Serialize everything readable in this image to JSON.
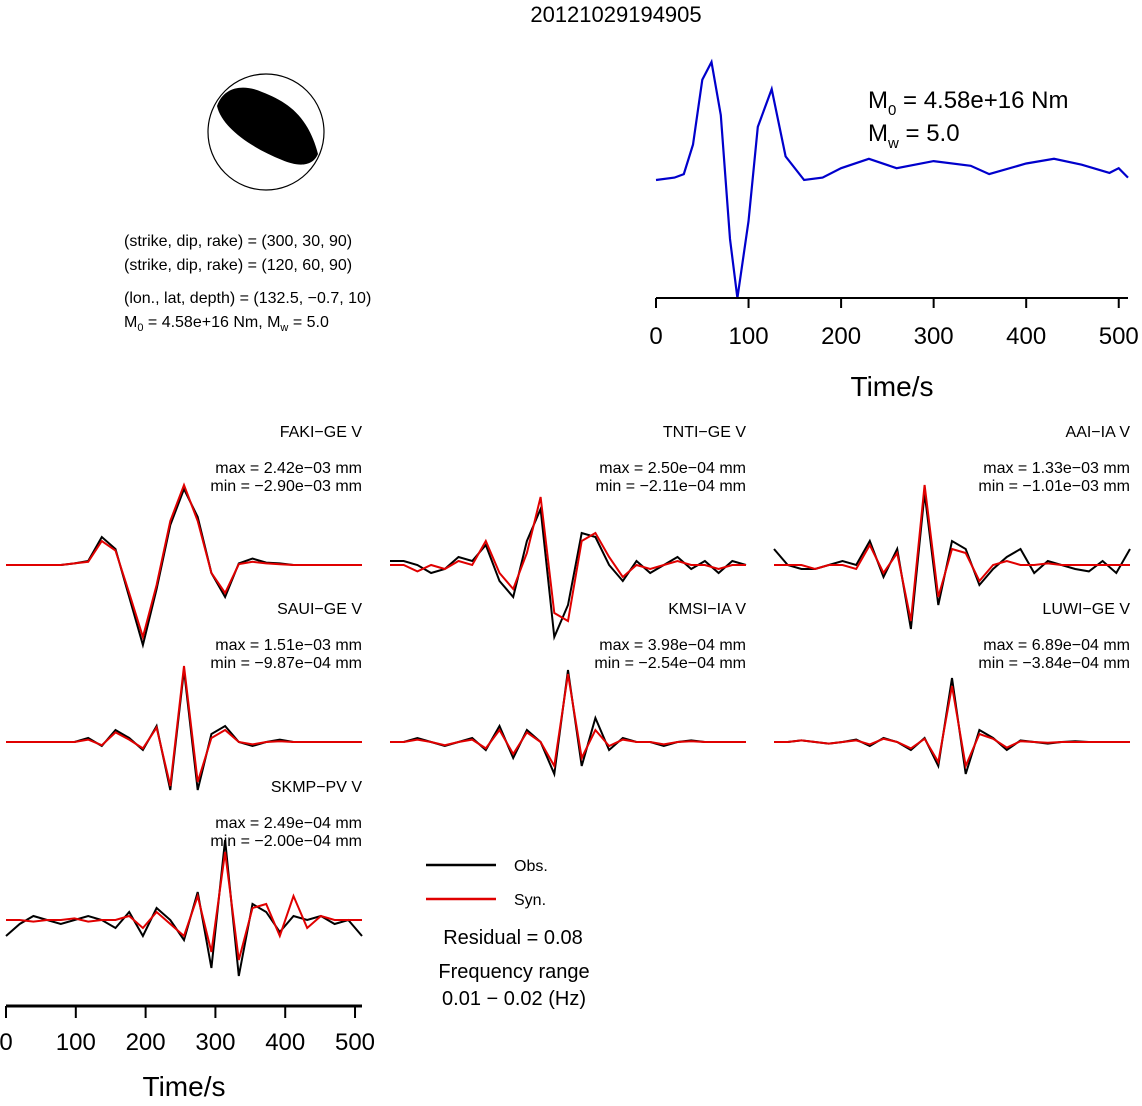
{
  "figure": {
    "title": "20121029194905",
    "mechanism": {
      "planes": [
        "(strike, dip, rake) = (300, 30, 90)",
        "(strike, dip, rake) = (120, 60, 90)"
      ],
      "location": "(lon., lat, depth) = (132.5, −0.7, 10)",
      "moment_line": {
        "m0_sym": "M",
        "m0_sub": "0",
        "m0_val": " = 4.58e+16 Nm, ",
        "mw_sym": "M",
        "mw_sub": "w",
        "mw_val": " = 5.0"
      }
    },
    "stf_labels": {
      "m0_sym": "M",
      "m0_sub": "0",
      "m0_val": " = 4.58e+16 Nm",
      "mw_sym": "M",
      "mw_sub": "w",
      "mw_val": " = 5.0"
    },
    "legend": {
      "obs": "Obs.",
      "syn": "Syn.",
      "residual": "Residual = 0.08",
      "freq_title": "Frequency range",
      "freq_range": "0.01 − 0.02 (Hz)"
    },
    "colors": {
      "obs": "#000000",
      "syn": "#e00000",
      "stf": "#0000cc",
      "beachball_fill": "#000000"
    }
  },
  "chart_data": [
    {
      "type": "line",
      "name": "source_time_function",
      "xlabel": "Time/s",
      "xlim": [
        0,
        510
      ],
      "ylim": [
        -1.0,
        1.0
      ],
      "xticks": [
        0,
        100,
        200,
        300,
        400,
        500
      ],
      "series": [
        {
          "x": [
            0,
            20,
            30,
            40,
            50,
            60,
            70,
            80,
            88,
            100,
            110,
            125,
            140,
            160,
            180,
            200,
            230,
            260,
            300,
            340,
            360,
            400,
            430,
            460,
            490,
            500,
            510
          ],
          "values": [
            0.0,
            0.02,
            0.05,
            0.3,
            0.85,
            1.0,
            0.55,
            -0.5,
            -1.0,
            -0.35,
            0.45,
            0.77,
            0.2,
            0.0,
            0.02,
            0.1,
            0.18,
            0.1,
            0.16,
            0.12,
            0.05,
            0.14,
            0.18,
            0.13,
            0.06,
            0.1,
            0.02
          ]
        }
      ]
    },
    {
      "type": "line",
      "name": "waveform_fits",
      "xlabel": "Time/s",
      "xlim": [
        0,
        510
      ],
      "xticks": [
        0,
        100,
        200,
        300,
        400,
        500
      ],
      "traces": [
        {
          "station": "FAKI−GE V",
          "max": "max = 2.42e−03 mm",
          "min": "min = −2.90e−03 mm",
          "obs": [
            0,
            0,
            0,
            0,
            0,
            0.02,
            0.05,
            0.35,
            0.2,
            -0.4,
            -1.0,
            -0.3,
            0.5,
            0.95,
            0.6,
            -0.1,
            -0.4,
            0.02,
            0.08,
            0.03,
            0.02,
            0,
            0,
            0,
            0,
            0,
            0
          ],
          "syn": [
            0,
            0,
            0,
            0,
            0,
            0.02,
            0.04,
            0.3,
            0.18,
            -0.35,
            -0.9,
            -0.25,
            0.55,
            1.0,
            0.55,
            -0.1,
            -0.35,
            0.01,
            0.04,
            0.02,
            0.01,
            0,
            0,
            0,
            0,
            0,
            0
          ]
        },
        {
          "station": "TNTI−GE V",
          "max": "max = 2.50e−04 mm",
          "min": "min = −2.11e−04 mm",
          "obs": [
            0.05,
            0.05,
            0.0,
            -0.1,
            -0.05,
            0.1,
            0.05,
            0.25,
            -0.2,
            -0.4,
            0.3,
            0.7,
            -0.9,
            -0.5,
            0.4,
            0.35,
            0.0,
            -0.2,
            0.05,
            -0.1,
            0.0,
            0.1,
            -0.05,
            0.05,
            -0.1,
            0.05,
            0.0
          ],
          "syn": [
            0,
            0.0,
            -0.08,
            0.0,
            -0.05,
            0.05,
            0.0,
            0.3,
            -0.1,
            -0.3,
            0.15,
            0.85,
            -0.6,
            -0.7,
            0.3,
            0.4,
            0.1,
            -0.15,
            0.0,
            -0.05,
            0.0,
            0.05,
            0.0,
            0.0,
            -0.05,
            0.0,
            0.0
          ]
        },
        {
          "station": "AAI−IA V",
          "max": "max = 1.33e−03 mm",
          "min": "min = −1.01e−03 mm",
          "obs": [
            0.2,
            0.0,
            -0.05,
            -0.05,
            0.0,
            0.05,
            0.0,
            0.3,
            -0.15,
            0.2,
            -0.8,
            0.9,
            -0.5,
            0.3,
            0.2,
            -0.25,
            -0.05,
            0.1,
            0.2,
            -0.1,
            0.05,
            0.0,
            -0.05,
            -0.08,
            0.05,
            -0.1,
            0.2
          ],
          "syn": [
            0,
            0,
            0,
            -0.05,
            0.0,
            0.0,
            -0.05,
            0.25,
            -0.1,
            0.15,
            -0.7,
            1.0,
            -0.4,
            0.2,
            0.15,
            -0.2,
            0.0,
            0.05,
            0.0,
            0.0,
            0.02,
            0.0,
            0.0,
            0.0,
            0.0,
            0.0,
            0.0
          ]
        },
        {
          "station": "SAUI−GE V",
          "max": "max = 1.51e−03 mm",
          "min": "min = −9.87e−04 mm",
          "obs": [
            0,
            0,
            0,
            0,
            0,
            0,
            0.05,
            -0.05,
            0.15,
            0.05,
            -0.1,
            0.2,
            -0.6,
            0.9,
            -0.6,
            0.1,
            0.2,
            0.0,
            -0.05,
            0.0,
            0.03,
            0.0,
            0.0,
            0,
            0,
            0,
            0
          ],
          "syn": [
            0,
            0,
            0,
            0,
            0,
            0,
            0.03,
            -0.04,
            0.12,
            0.03,
            -0.08,
            0.18,
            -0.55,
            0.95,
            -0.5,
            0.05,
            0.15,
            0.0,
            -0.03,
            0.0,
            0.01,
            0.0,
            0.0,
            0,
            0,
            0,
            0
          ]
        },
        {
          "station": "KMSI−IA V",
          "max": "max = 3.98e−04 mm",
          "min": "min = −2.54e−04 mm",
          "obs": [
            0,
            0.0,
            0.05,
            0.0,
            -0.05,
            0.0,
            0.05,
            -0.1,
            0.2,
            -0.2,
            0.15,
            0.0,
            -0.4,
            0.9,
            -0.3,
            0.3,
            -0.1,
            0.05,
            0.0,
            0.0,
            -0.05,
            0.0,
            0.02,
            0,
            0,
            0,
            0
          ],
          "syn": [
            0,
            0.0,
            0.03,
            0.0,
            -0.04,
            0.0,
            0.03,
            -0.08,
            0.15,
            -0.15,
            0.12,
            0.0,
            -0.3,
            0.85,
            -0.2,
            0.15,
            -0.05,
            0.03,
            0.0,
            0.0,
            -0.03,
            0.0,
            0.01,
            0,
            0,
            0,
            0
          ]
        },
        {
          "station": "LUWI−GE V",
          "max": "max = 6.89e−04 mm",
          "min": "min = −3.84e−04 mm",
          "obs": [
            0,
            0.0,
            0.02,
            0.0,
            -0.02,
            0.0,
            0.03,
            -0.05,
            0.05,
            0.0,
            -0.1,
            0.05,
            -0.3,
            0.8,
            -0.4,
            0.15,
            0.05,
            -0.1,
            0.02,
            0.0,
            -0.02,
            0.0,
            0.01,
            0,
            0,
            0,
            0
          ],
          "syn": [
            0,
            0.0,
            0.02,
            0.0,
            -0.02,
            0.0,
            0.02,
            -0.03,
            0.04,
            0.0,
            -0.08,
            0.04,
            -0.25,
            0.7,
            -0.3,
            0.1,
            0.04,
            -0.07,
            0.01,
            0.0,
            -0.01,
            0.0,
            0.0,
            0,
            0,
            0,
            0
          ]
        },
        {
          "station": "SKMP−PV V",
          "max": "max = 2.49e−04 mm",
          "min": "min = −2.00e−04 mm",
          "obs": [
            -0.2,
            -0.05,
            0.05,
            0.0,
            -0.05,
            0.0,
            0.05,
            0.0,
            -0.1,
            0.1,
            -0.2,
            0.15,
            0.0,
            -0.25,
            0.35,
            -0.6,
            1.0,
            -0.7,
            0.2,
            0.1,
            -0.15,
            0.05,
            0.0,
            0.05,
            -0.05,
            0.0,
            -0.2
          ],
          "syn": [
            0,
            0.0,
            -0.02,
            0.0,
            0.0,
            0.02,
            -0.02,
            0.0,
            0.0,
            0.05,
            -0.1,
            0.1,
            -0.05,
            -0.2,
            0.3,
            -0.4,
            0.85,
            -0.5,
            0.15,
            0.2,
            -0.2,
            0.3,
            -0.1,
            0.05,
            0.0,
            0.0,
            0.0
          ]
        }
      ]
    }
  ]
}
